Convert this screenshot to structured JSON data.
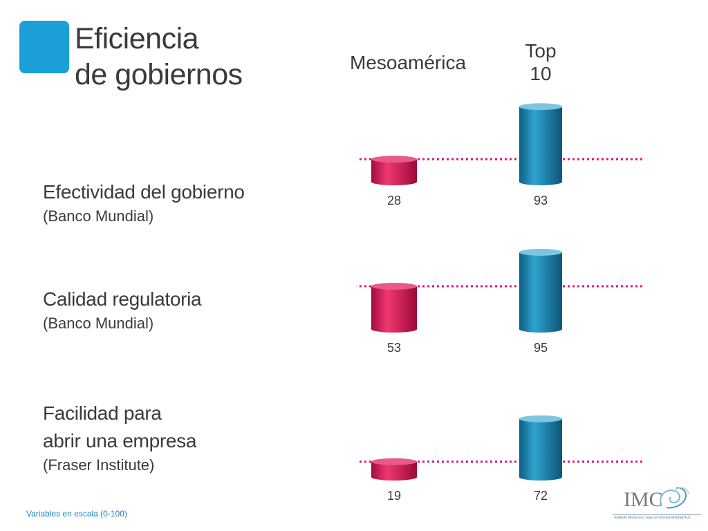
{
  "title": {
    "line1": "Eficiencia",
    "line2": "de gobiernos"
  },
  "columns": {
    "meso": "Mesoamérica",
    "top_line1": "Top",
    "top_line2": "10"
  },
  "rows": [
    {
      "title": "Efectividad del gobierno",
      "source": "(Banco Mundial)"
    },
    {
      "title": "Calidad regulatoria",
      "source": "(Banco Mundial)"
    },
    {
      "title_line1": "Facilidad para",
      "title_line2": "abrir una empresa",
      "source": "(Fraser Institute)"
    }
  ],
  "footnote": "Variables en escala (0-100)",
  "logo": {
    "word": "IMC",
    "tagline": "Instituto Mexicano para la Competitividad A.C."
  },
  "colors": {
    "accent": "#1aa0d6",
    "meso_bar": "#e0115a",
    "top_bar": "#1a86b3",
    "reference_line": "#e0117a"
  },
  "chart_data": {
    "type": "bar",
    "y_scale": [
      0,
      100
    ],
    "categories": [
      "Efectividad del gobierno",
      "Calidad regulatoria",
      "Facilidad para abrir una empresa"
    ],
    "series": [
      {
        "name": "Mesoamérica",
        "values": [
          28,
          53,
          19
        ]
      },
      {
        "name": "Top 10",
        "values": [
          93,
          95,
          72
        ]
      }
    ]
  }
}
